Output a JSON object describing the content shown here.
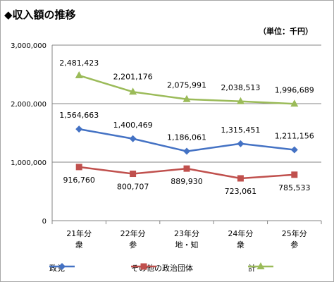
{
  "title": "◆収入額の推移",
  "unit_label": "（単位：千円）",
  "chart_data": {
    "type": "line",
    "categories": [
      [
        "21年分",
        "衆"
      ],
      [
        "22年分",
        "参"
      ],
      [
        "23年分",
        "地・知"
      ],
      [
        "24年分",
        "衆"
      ],
      [
        "25年分",
        "参"
      ]
    ],
    "ylim": [
      0,
      3000000
    ],
    "yticks": [
      0,
      1000000,
      2000000,
      3000000
    ],
    "ytick_labels": [
      "0",
      "1,000,000",
      "2,000,000",
      "3,000,000"
    ],
    "grid": true,
    "legend_position": "bottom",
    "series": [
      {
        "name": "政党",
        "color": "#4472c4",
        "marker": "diamond",
        "values": [
          1564663,
          1400469,
          1186061,
          1315451,
          1211156
        ],
        "labels": [
          "1,564,663",
          "1,400,469",
          "1,186,061",
          "1,315,451",
          "1,211,156"
        ]
      },
      {
        "name": "その他の政治団体",
        "color": "#c0504d",
        "marker": "square",
        "values": [
          916760,
          800707,
          889930,
          723061,
          785533
        ],
        "labels": [
          "916,760",
          "800,707",
          "889,930",
          "723,061",
          "785,533"
        ]
      },
      {
        "name": "計",
        "color": "#9bbb59",
        "marker": "triangle",
        "values": [
          2481423,
          2201176,
          2075991,
          2038513,
          1996689
        ],
        "labels": [
          "2,481,423",
          "2,201,176",
          "2,075,991",
          "2,038,513",
          "1,996,689"
        ]
      }
    ]
  }
}
